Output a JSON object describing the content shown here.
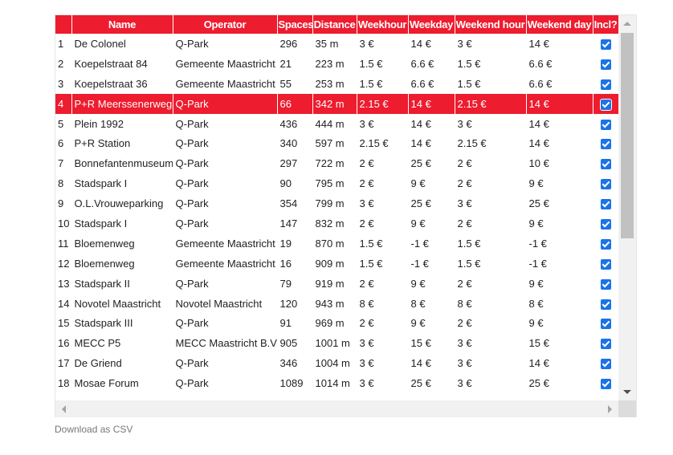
{
  "grid": {
    "columns": [
      "",
      "Name",
      "Operator",
      "Spaces",
      "Distance",
      "Weekhour",
      "Weekday",
      "Weekend hour",
      "Weekend day",
      "Incl?"
    ],
    "selected_row": 3,
    "rows": [
      {
        "n": "1",
        "name": "De Colonel",
        "operator": "Q-Park",
        "spaces": "296",
        "distance": "35 m",
        "weekhour": "3 €",
        "weekday": "14 €",
        "weekendhour": "3 €",
        "weekendday": "14 €",
        "incl": true
      },
      {
        "n": "2",
        "name": "Koepelstraat 84",
        "operator": "Gemeente Maastricht",
        "spaces": "21",
        "distance": "223 m",
        "weekhour": "1.5 €",
        "weekday": "6.6 €",
        "weekendhour": "1.5 €",
        "weekendday": "6.6 €",
        "incl": true
      },
      {
        "n": "3",
        "name": "Koepelstraat 36",
        "operator": "Gemeente Maastricht",
        "spaces": "55",
        "distance": "253 m",
        "weekhour": "1.5 €",
        "weekday": "6.6 €",
        "weekendhour": "1.5 €",
        "weekendday": "6.6 €",
        "incl": true
      },
      {
        "n": "4",
        "name": "P+R Meerssenerweg",
        "operator": "Q-Park",
        "spaces": "66",
        "distance": "342 m",
        "weekhour": "2.15 €",
        "weekday": "14 €",
        "weekendhour": "2.15 €",
        "weekendday": "14 €",
        "incl": true
      },
      {
        "n": "5",
        "name": "Plein 1992",
        "operator": "Q-Park",
        "spaces": "436",
        "distance": "444 m",
        "weekhour": "3 €",
        "weekday": "14 €",
        "weekendhour": "3 €",
        "weekendday": "14 €",
        "incl": true
      },
      {
        "n": "6",
        "name": "P+R Station",
        "operator": "Q-Park",
        "spaces": "340",
        "distance": "597 m",
        "weekhour": "2.15 €",
        "weekday": "14 €",
        "weekendhour": "2.15 €",
        "weekendday": "14 €",
        "incl": true
      },
      {
        "n": "7",
        "name": "Bonnefantenmuseum",
        "operator": "Q-Park",
        "spaces": "297",
        "distance": "722 m",
        "weekhour": "2 €",
        "weekday": "25 €",
        "weekendhour": "2 €",
        "weekendday": "10 €",
        "incl": true
      },
      {
        "n": "8",
        "name": "Stadspark I",
        "operator": "Q-Park",
        "spaces": "90",
        "distance": "795 m",
        "weekhour": "2 €",
        "weekday": "9 €",
        "weekendhour": "2 €",
        "weekendday": "9 €",
        "incl": true
      },
      {
        "n": "9",
        "name": "O.L.Vrouweparking",
        "operator": "Q-Park",
        "spaces": "354",
        "distance": "799 m",
        "weekhour": "3 €",
        "weekday": "25 €",
        "weekendhour": "3 €",
        "weekendday": "25 €",
        "incl": true
      },
      {
        "n": "10",
        "name": "Stadspark I",
        "operator": "Q-Park",
        "spaces": "147",
        "distance": "832 m",
        "weekhour": "2 €",
        "weekday": "9 €",
        "weekendhour": "2 €",
        "weekendday": "9 €",
        "incl": true
      },
      {
        "n": "11",
        "name": "Bloemenweg",
        "operator": "Gemeente Maastricht",
        "spaces": "19",
        "distance": "870 m",
        "weekhour": "1.5 €",
        "weekday": "-1 €",
        "weekendhour": "1.5 €",
        "weekendday": "-1 €",
        "incl": true
      },
      {
        "n": "12",
        "name": "Bloemenweg",
        "operator": "Gemeente Maastricht",
        "spaces": "16",
        "distance": "909 m",
        "weekhour": "1.5 €",
        "weekday": "-1 €",
        "weekendhour": "1.5 €",
        "weekendday": "-1 €",
        "incl": true
      },
      {
        "n": "13",
        "name": "Stadspark II",
        "operator": "Q-Park",
        "spaces": "79",
        "distance": "919 m",
        "weekhour": "2 €",
        "weekday": "9 €",
        "weekendhour": "2 €",
        "weekendday": "9 €",
        "incl": true
      },
      {
        "n": "14",
        "name": "Novotel Maastricht",
        "operator": "Novotel Maastricht",
        "spaces": "120",
        "distance": "943 m",
        "weekhour": "8 €",
        "weekday": "8 €",
        "weekendhour": "8 €",
        "weekendday": "8 €",
        "incl": true
      },
      {
        "n": "15",
        "name": "Stadspark III",
        "operator": "Q-Park",
        "spaces": "91",
        "distance": "969 m",
        "weekhour": "2 €",
        "weekday": "9 €",
        "weekendhour": "2 €",
        "weekendday": "9 €",
        "incl": true
      },
      {
        "n": "16",
        "name": "MECC P5",
        "operator": "MECC Maastricht B.V.",
        "spaces": "905",
        "distance": "1001 m",
        "weekhour": "3 €",
        "weekday": "15 €",
        "weekendhour": "3 €",
        "weekendday": "15 €",
        "incl": true
      },
      {
        "n": "17",
        "name": "De Griend",
        "operator": "Q-Park",
        "spaces": "346",
        "distance": "1004 m",
        "weekhour": "3 €",
        "weekday": "14 €",
        "weekendhour": "3 €",
        "weekendday": "14 €",
        "incl": true
      },
      {
        "n": "18",
        "name": "Mosae Forum",
        "operator": "Q-Park",
        "spaces": "1089",
        "distance": "1014 m",
        "weekhour": "3 €",
        "weekday": "25 €",
        "weekendhour": "3 €",
        "weekendday": "25 €",
        "incl": true
      }
    ]
  },
  "footer": {
    "download_label": "Download as CSV"
  },
  "colors": {
    "header_bg": "#ed1c2e",
    "selected_bg": "#ed1c2e",
    "checkbox": "#1a73e8"
  }
}
